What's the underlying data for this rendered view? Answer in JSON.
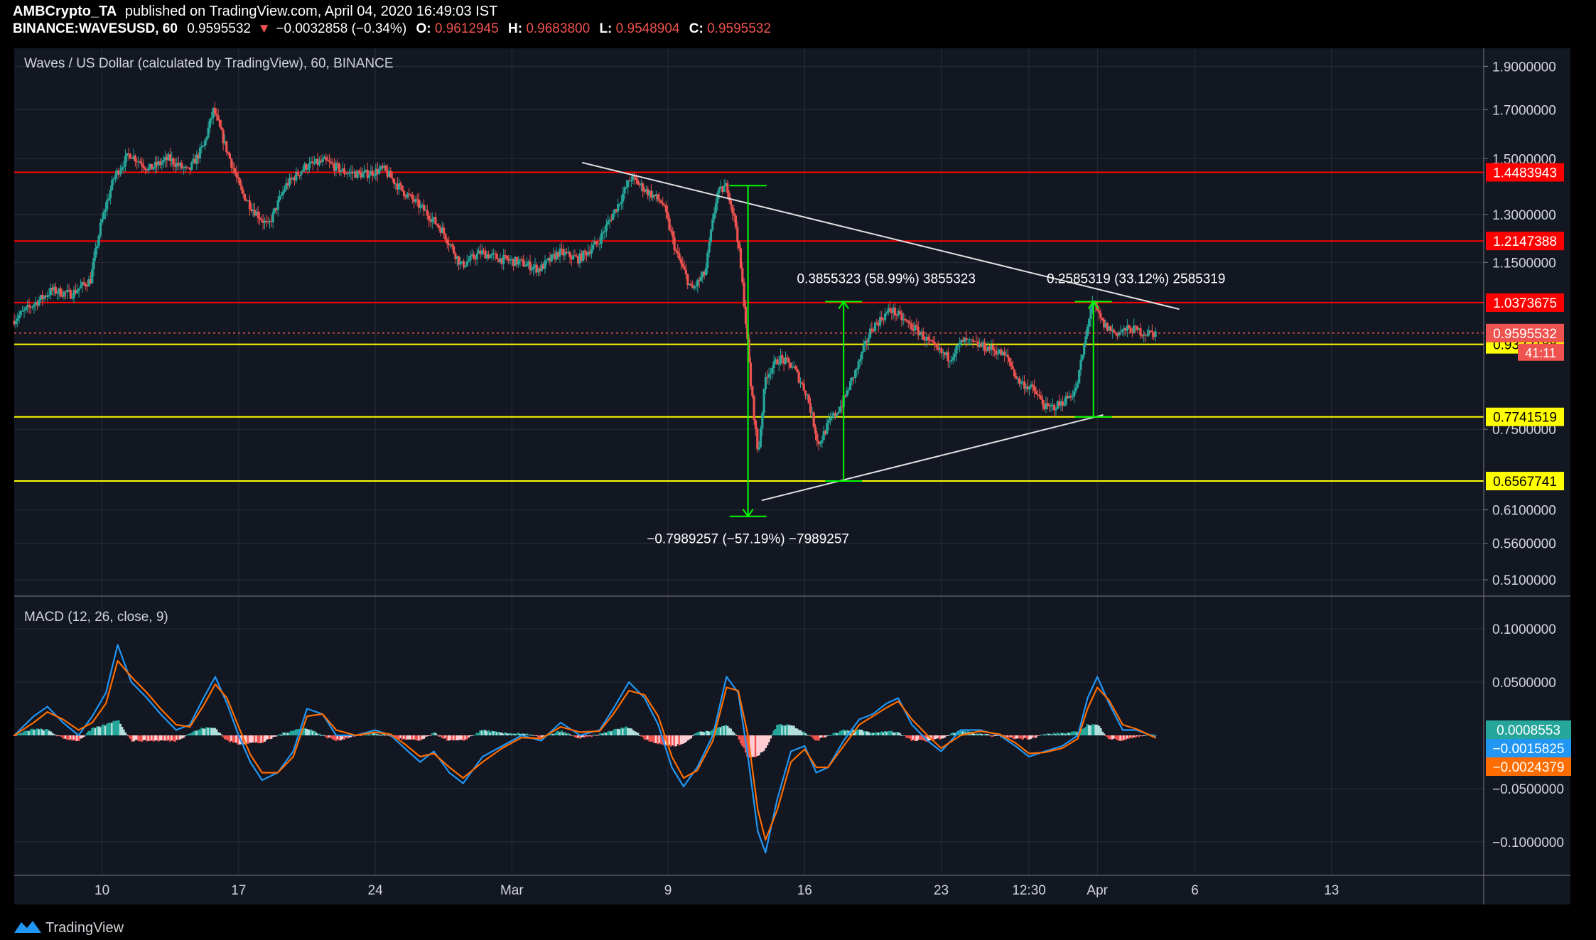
{
  "header": {
    "author": "AMBCrypto_TA",
    "published": "published on TradingView.com, April 04, 2020 16:49:03 IST",
    "symbol": "BINANCE:WAVESUSD, 60",
    "last": "0.9595532",
    "arrow": "▼",
    "change": "−0.0032858 (−0.34%)",
    "o_label": "O:",
    "o": "0.9612945",
    "h_label": "H:",
    "h": "0.9683800",
    "l_label": "L:",
    "l": "0.9548904",
    "c_label": "C:",
    "c": "0.9595532"
  },
  "footer": {
    "logo_text": "TradingView"
  },
  "colors": {
    "bg": "#131722",
    "grid": "#2a2e39",
    "axis_text": "#d1d4dc",
    "up": "#26a69a",
    "down": "#ef5350",
    "resistance": "#ff0000",
    "support": "#ffff00",
    "measure": "#00ff00",
    "trendline": "#e0e0e0",
    "macd": "#2196f3",
    "signal": "#ff6d00"
  },
  "chart_data": [
    {
      "type": "candlestick",
      "title": "Waves / US Dollar (calculated by TradingView), 60, BINANCE",
      "x_ticks": [
        {
          "label": "10",
          "day": 10
        },
        {
          "label": "17",
          "day": 17
        },
        {
          "label": "24",
          "day": 24
        },
        {
          "label": "Mar",
          "day": 31
        },
        {
          "label": "9",
          "day": 39
        },
        {
          "label": "16",
          "day": 46
        },
        {
          "label": "23",
          "day": 53
        },
        {
          "label": "12:30",
          "day": 57.5
        },
        {
          "label": "Apr",
          "day": 61
        },
        {
          "label": "6",
          "day": 66
        },
        {
          "label": "13",
          "day": 73
        }
      ],
      "x_range_days": [
        5.5,
        80.8
      ],
      "y_ticks": [
        "1.9000000",
        "1.7000000",
        "1.5000000",
        "1.3000000",
        "1.1500000",
        "0.7500000",
        "0.6100000",
        "0.5600000",
        "0.5100000"
      ],
      "y_tick_values": [
        1.9,
        1.7,
        1.5,
        1.3,
        1.15,
        0.75,
        0.61,
        0.56,
        0.51
      ],
      "ylim": [
        0.49,
        1.99
      ],
      "y_scale": "log",
      "price_path": [
        [
          5.5,
          0.99
        ],
        [
          6.5,
          1.03
        ],
        [
          7.5,
          1.07
        ],
        [
          8.5,
          1.06
        ],
        [
          9.5,
          1.1
        ],
        [
          10.0,
          1.26
        ],
        [
          10.7,
          1.43
        ],
        [
          11.5,
          1.52
        ],
        [
          12.5,
          1.46
        ],
        [
          13.5,
          1.5
        ],
        [
          14.5,
          1.45
        ],
        [
          15.3,
          1.55
        ],
        [
          15.8,
          1.7
        ],
        [
          16.4,
          1.55
        ],
        [
          17.2,
          1.38
        ],
        [
          17.8,
          1.32
        ],
        [
          18.6,
          1.26
        ],
        [
          19.5,
          1.4
        ],
        [
          20.5,
          1.47
        ],
        [
          21.5,
          1.49
        ],
        [
          22.5,
          1.45
        ],
        [
          23.5,
          1.44
        ],
        [
          24.5,
          1.46
        ],
        [
          25.5,
          1.38
        ],
        [
          26.5,
          1.32
        ],
        [
          27.5,
          1.25
        ],
        [
          28.5,
          1.14
        ],
        [
          29.5,
          1.18
        ],
        [
          30.5,
          1.16
        ],
        [
          31.5,
          1.15
        ],
        [
          32.5,
          1.13
        ],
        [
          33.5,
          1.18
        ],
        [
          34.5,
          1.16
        ],
        [
          35.5,
          1.21
        ],
        [
          36.5,
          1.33
        ],
        [
          37.2,
          1.43
        ],
        [
          38.0,
          1.38
        ],
        [
          38.8,
          1.34
        ],
        [
          39.5,
          1.18
        ],
        [
          40.3,
          1.07
        ],
        [
          41.0,
          1.12
        ],
        [
          41.6,
          1.37
        ],
        [
          42.1,
          1.4
        ],
        [
          42.6,
          1.25
        ],
        [
          43.0,
          1.03
        ],
        [
          43.3,
          0.85
        ],
        [
          43.7,
          0.7
        ],
        [
          44.1,
          0.86
        ],
        [
          44.8,
          0.9
        ],
        [
          45.5,
          0.88
        ],
        [
          46.2,
          0.82
        ],
        [
          46.8,
          0.72
        ],
        [
          47.3,
          0.76
        ],
        [
          48.0,
          0.8
        ],
        [
          48.8,
          0.88
        ],
        [
          49.5,
          0.97
        ],
        [
          50.5,
          1.02
        ],
        [
          51.2,
          0.99
        ],
        [
          52.0,
          0.96
        ],
        [
          52.8,
          0.92
        ],
        [
          53.5,
          0.9
        ],
        [
          54.2,
          0.94
        ],
        [
          55.0,
          0.93
        ],
        [
          55.8,
          0.92
        ],
        [
          56.5,
          0.9
        ],
        [
          57.0,
          0.85
        ],
        [
          57.8,
          0.83
        ],
        [
          58.5,
          0.79
        ],
        [
          59.2,
          0.8
        ],
        [
          60.0,
          0.83
        ],
        [
          60.5,
          0.95
        ],
        [
          60.8,
          1.04
        ],
        [
          61.4,
          0.98
        ],
        [
          62.0,
          0.96
        ],
        [
          62.8,
          0.97
        ],
        [
          63.5,
          0.96
        ],
        [
          64.0,
          0.96
        ]
      ],
      "horizontal_levels": [
        {
          "label": "1.4483943",
          "value": 1.4483943,
          "color": "#ff0000",
          "text_color": "#ffffff"
        },
        {
          "label": "1.2147388",
          "value": 1.2147388,
          "color": "#ff0000",
          "text_color": "#ffffff"
        },
        {
          "label": "1.0373675",
          "value": 1.0373675,
          "color": "#ff0000",
          "text_color": "#ffffff"
        },
        {
          "label": "0.9322188",
          "value": 0.9322188,
          "color": "#ffff00",
          "text_color": "#000000"
        },
        {
          "label": "0.7741519",
          "value": 0.7741519,
          "color": "#ffff00",
          "text_color": "#000000"
        },
        {
          "label": "0.6567741",
          "value": 0.6567741,
          "color": "#ffff00",
          "text_color": "#000000"
        }
      ],
      "current_price": {
        "label": "0.9595532",
        "value": 0.9595532,
        "countdown": "41:11"
      },
      "trendlines": [
        {
          "name": "descending",
          "from": [
            34.6,
            1.485
          ],
          "to": [
            65.2,
            1.02
          ]
        },
        {
          "name": "ascending",
          "from": [
            43.8,
            0.625
          ],
          "to": [
            61.3,
            0.778
          ]
        }
      ],
      "measurements": [
        {
          "label": "−0.7989257 (−57.19%) −7989257",
          "day": 43.1,
          "from": 1.4,
          "to": 0.6
        },
        {
          "label": "0.3855323 (58.99%) 3855323",
          "day": 48.0,
          "from": 0.6567741,
          "to": 1.04
        },
        {
          "label": "0.2585319 (33.12%) 2585319",
          "day": 60.8,
          "from": 0.7741519,
          "to": 1.04
        }
      ]
    },
    {
      "type": "line",
      "title": "MACD (12, 26, close, 9)",
      "y_ticks": [
        "0.1000000",
        "0.0500000",
        "−0.0500000",
        "−0.1000000"
      ],
      "y_tick_values": [
        0.1,
        0.05,
        -0.05,
        -0.1
      ],
      "ylim": [
        -0.13,
        0.13
      ],
      "series": [
        {
          "name": "MACD",
          "color": "#2196f3",
          "points": [
            [
              5.5,
              0.0
            ],
            [
              6.5,
              0.018
            ],
            [
              7.2,
              0.027
            ],
            [
              8.0,
              0.012
            ],
            [
              8.8,
              0.0
            ],
            [
              9.5,
              0.018
            ],
            [
              10.2,
              0.04
            ],
            [
              10.8,
              0.085
            ],
            [
              11.5,
              0.05
            ],
            [
              12.3,
              0.035
            ],
            [
              13.0,
              0.02
            ],
            [
              13.8,
              0.005
            ],
            [
              14.5,
              0.01
            ],
            [
              15.2,
              0.035
            ],
            [
              15.8,
              0.055
            ],
            [
              16.4,
              0.03
            ],
            [
              17.0,
              0.0
            ],
            [
              17.6,
              -0.025
            ],
            [
              18.2,
              -0.042
            ],
            [
              19.0,
              -0.035
            ],
            [
              19.8,
              -0.015
            ],
            [
              20.5,
              0.025
            ],
            [
              21.3,
              0.02
            ],
            [
              22.0,
              0.0
            ],
            [
              23.0,
              0.0
            ],
            [
              24.0,
              0.005
            ],
            [
              24.8,
              0.0
            ],
            [
              25.5,
              -0.012
            ],
            [
              26.3,
              -0.025
            ],
            [
              27.0,
              -0.015
            ],
            [
              27.8,
              -0.035
            ],
            [
              28.5,
              -0.045
            ],
            [
              29.5,
              -0.02
            ],
            [
              30.5,
              -0.01
            ],
            [
              31.5,
              0.0
            ],
            [
              32.5,
              -0.005
            ],
            [
              33.5,
              0.012
            ],
            [
              34.5,
              0.0
            ],
            [
              35.5,
              0.005
            ],
            [
              36.2,
              0.025
            ],
            [
              37.0,
              0.05
            ],
            [
              37.8,
              0.035
            ],
            [
              38.5,
              0.01
            ],
            [
              39.2,
              -0.03
            ],
            [
              39.8,
              -0.048
            ],
            [
              40.5,
              -0.03
            ],
            [
              41.3,
              0.0
            ],
            [
              42.0,
              0.055
            ],
            [
              42.6,
              0.04
            ],
            [
              43.1,
              -0.02
            ],
            [
              43.6,
              -0.09
            ],
            [
              44.0,
              -0.11
            ],
            [
              44.6,
              -0.06
            ],
            [
              45.3,
              -0.015
            ],
            [
              46.0,
              -0.01
            ],
            [
              46.6,
              -0.035
            ],
            [
              47.2,
              -0.03
            ],
            [
              48.0,
              -0.005
            ],
            [
              48.8,
              0.015
            ],
            [
              49.5,
              0.02
            ],
            [
              50.2,
              0.03
            ],
            [
              50.8,
              0.035
            ],
            [
              51.5,
              0.01
            ],
            [
              52.3,
              -0.005
            ],
            [
              53.0,
              -0.015
            ],
            [
              54.0,
              0.005
            ],
            [
              55.0,
              0.005
            ],
            [
              56.0,
              0.0
            ],
            [
              56.8,
              -0.01
            ],
            [
              57.5,
              -0.02
            ],
            [
              58.3,
              -0.015
            ],
            [
              59.2,
              -0.01
            ],
            [
              60.0,
              0.0
            ],
            [
              60.5,
              0.035
            ],
            [
              61.0,
              0.055
            ],
            [
              61.6,
              0.03
            ],
            [
              62.3,
              0.005
            ],
            [
              63.0,
              0.005
            ],
            [
              64.0,
              -0.0015825
            ]
          ]
        },
        {
          "name": "Signal",
          "color": "#ff6d00",
          "points": [
            [
              5.5,
              0.0
            ],
            [
              6.5,
              0.012
            ],
            [
              7.2,
              0.022
            ],
            [
              8.0,
              0.015
            ],
            [
              8.8,
              0.005
            ],
            [
              9.5,
              0.012
            ],
            [
              10.2,
              0.03
            ],
            [
              10.8,
              0.07
            ],
            [
              11.5,
              0.055
            ],
            [
              12.3,
              0.04
            ],
            [
              13.0,
              0.025
            ],
            [
              13.8,
              0.01
            ],
            [
              14.5,
              0.008
            ],
            [
              15.2,
              0.028
            ],
            [
              15.8,
              0.048
            ],
            [
              16.4,
              0.035
            ],
            [
              17.0,
              0.008
            ],
            [
              17.6,
              -0.018
            ],
            [
              18.2,
              -0.035
            ],
            [
              19.0,
              -0.035
            ],
            [
              19.8,
              -0.02
            ],
            [
              20.5,
              0.018
            ],
            [
              21.3,
              0.02
            ],
            [
              22.0,
              0.005
            ],
            [
              23.0,
              0.0
            ],
            [
              24.0,
              0.003
            ],
            [
              24.8,
              0.001
            ],
            [
              25.5,
              -0.008
            ],
            [
              26.3,
              -0.02
            ],
            [
              27.0,
              -0.017
            ],
            [
              27.8,
              -0.03
            ],
            [
              28.5,
              -0.04
            ],
            [
              29.5,
              -0.025
            ],
            [
              30.5,
              -0.012
            ],
            [
              31.5,
              -0.002
            ],
            [
              32.5,
              -0.003
            ],
            [
              33.5,
              0.008
            ],
            [
              34.5,
              0.003
            ],
            [
              35.5,
              0.004
            ],
            [
              36.2,
              0.02
            ],
            [
              37.0,
              0.042
            ],
            [
              37.8,
              0.038
            ],
            [
              38.5,
              0.018
            ],
            [
              39.2,
              -0.02
            ],
            [
              39.8,
              -0.04
            ],
            [
              40.5,
              -0.033
            ],
            [
              41.3,
              -0.005
            ],
            [
              42.0,
              0.045
            ],
            [
              42.6,
              0.042
            ],
            [
              43.1,
              0.0
            ],
            [
              43.6,
              -0.07
            ],
            [
              44.0,
              -0.098
            ],
            [
              44.6,
              -0.07
            ],
            [
              45.3,
              -0.025
            ],
            [
              46.0,
              -0.013
            ],
            [
              46.6,
              -0.03
            ],
            [
              47.2,
              -0.03
            ],
            [
              48.0,
              -0.01
            ],
            [
              48.8,
              0.01
            ],
            [
              49.5,
              0.018
            ],
            [
              50.2,
              0.026
            ],
            [
              50.8,
              0.032
            ],
            [
              51.5,
              0.015
            ],
            [
              52.3,
              0.0
            ],
            [
              53.0,
              -0.012
            ],
            [
              54.0,
              0.0
            ],
            [
              55.0,
              0.004
            ],
            [
              56.0,
              0.001
            ],
            [
              56.8,
              -0.007
            ],
            [
              57.5,
              -0.017
            ],
            [
              58.3,
              -0.016
            ],
            [
              59.2,
              -0.012
            ],
            [
              60.0,
              -0.003
            ],
            [
              60.5,
              0.025
            ],
            [
              61.0,
              0.045
            ],
            [
              61.6,
              0.033
            ],
            [
              62.3,
              0.01
            ],
            [
              63.0,
              0.006
            ],
            [
              64.0,
              -0.0024379
            ]
          ]
        }
      ],
      "value_labels": [
        {
          "label": "0.0008553",
          "value": 0.0008553,
          "color": "#26a69a"
        },
        {
          "label": "−0.0015825",
          "value": -0.0015825,
          "color": "#2196f3"
        },
        {
          "label": "−0.0024379",
          "value": -0.0024379,
          "color": "#ff6d00"
        }
      ]
    }
  ]
}
